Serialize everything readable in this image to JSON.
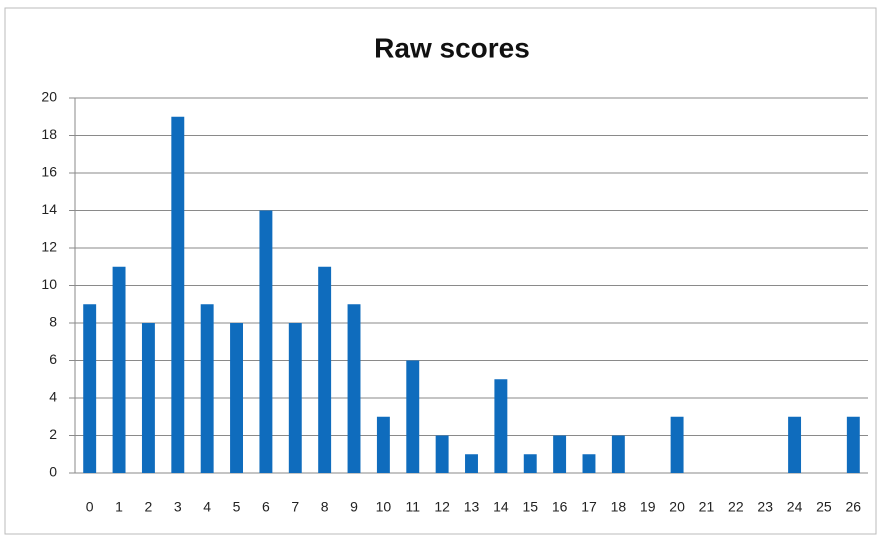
{
  "chart_data": {
    "type": "bar",
    "title": "Raw scores",
    "categories": [
      "0",
      "1",
      "2",
      "3",
      "4",
      "5",
      "6",
      "7",
      "8",
      "9",
      "10",
      "11",
      "12",
      "13",
      "14",
      "15",
      "16",
      "17",
      "18",
      "19",
      "20",
      "21",
      "22",
      "23",
      "24",
      "25",
      "26"
    ],
    "values": [
      9,
      11,
      8,
      19,
      9,
      8,
      14,
      8,
      11,
      9,
      3,
      6,
      2,
      1,
      5,
      1,
      2,
      1,
      2,
      0,
      3,
      0,
      0,
      0,
      3,
      0,
      3
    ],
    "color": "#0f6cbd",
    "ylim": [
      0,
      20
    ],
    "yticks": [
      0,
      2,
      4,
      6,
      8,
      10,
      12,
      14,
      16,
      18,
      20
    ],
    "grid": true
  }
}
